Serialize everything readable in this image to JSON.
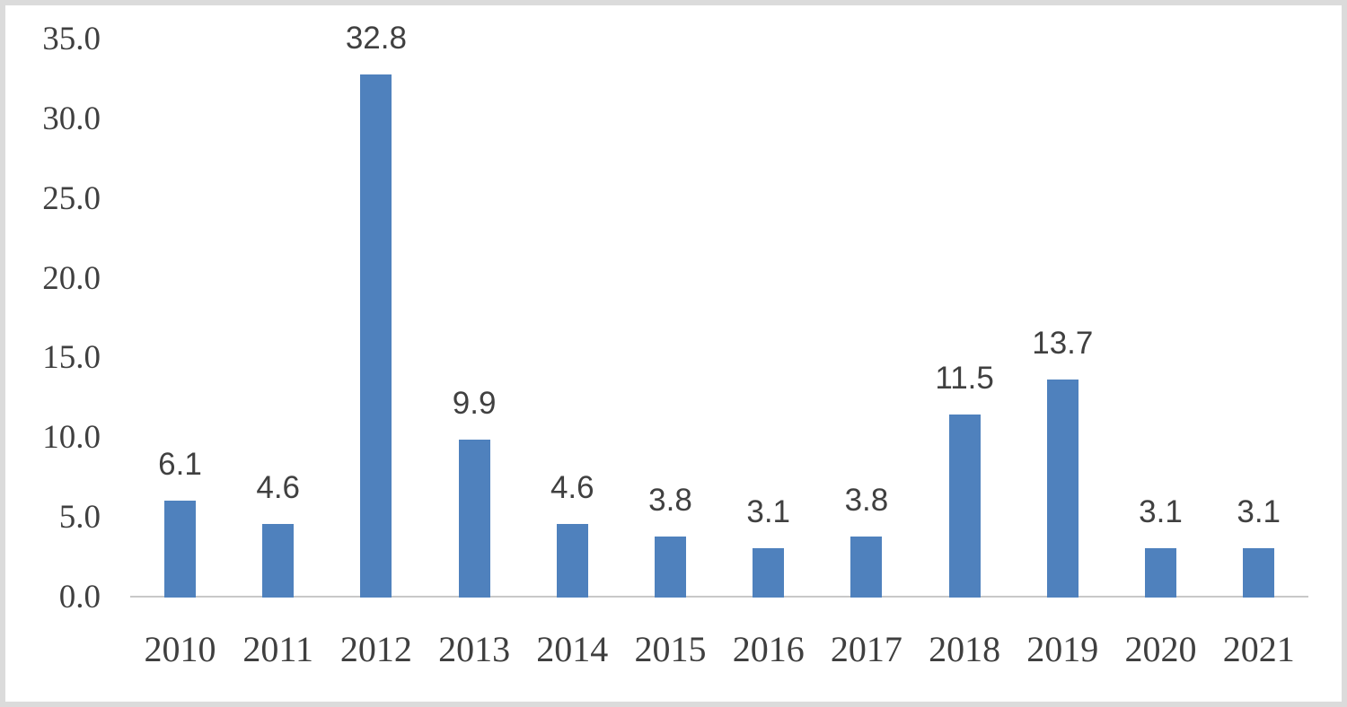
{
  "chart_data": {
    "type": "bar",
    "title": "",
    "xlabel": "",
    "ylabel": "",
    "categories": [
      "2010",
      "2011",
      "2012",
      "2013",
      "2014",
      "2015",
      "2016",
      "2017",
      "2018",
      "2019",
      "2020",
      "2021"
    ],
    "values": [
      6.1,
      4.6,
      32.8,
      9.9,
      4.6,
      3.8,
      3.1,
      3.8,
      11.5,
      13.7,
      3.1,
      3.1
    ],
    "data_labels": [
      "6.1",
      "4.6",
      "32.8",
      "9.9",
      "4.6",
      "3.8",
      "3.1",
      "3.8",
      "11.5",
      "13.7",
      "3.1",
      "3.1"
    ],
    "ylim": [
      0,
      35
    ],
    "y_tick_labels": [
      "0.0",
      "5.0",
      "10.0",
      "15.0",
      "20.0",
      "25.0",
      "30.0",
      "35.0"
    ],
    "y_tick_values": [
      0,
      5,
      10,
      15,
      20,
      25,
      30,
      35
    ],
    "grid": false,
    "legend": false,
    "data_labels_shown": true,
    "bar_color": "#4f81bd",
    "axis_line_color": "#c8c8c8",
    "text_color": "#3f3f3f",
    "data_label_color": "#404040",
    "frame_border_color": "#dbdbdb"
  }
}
